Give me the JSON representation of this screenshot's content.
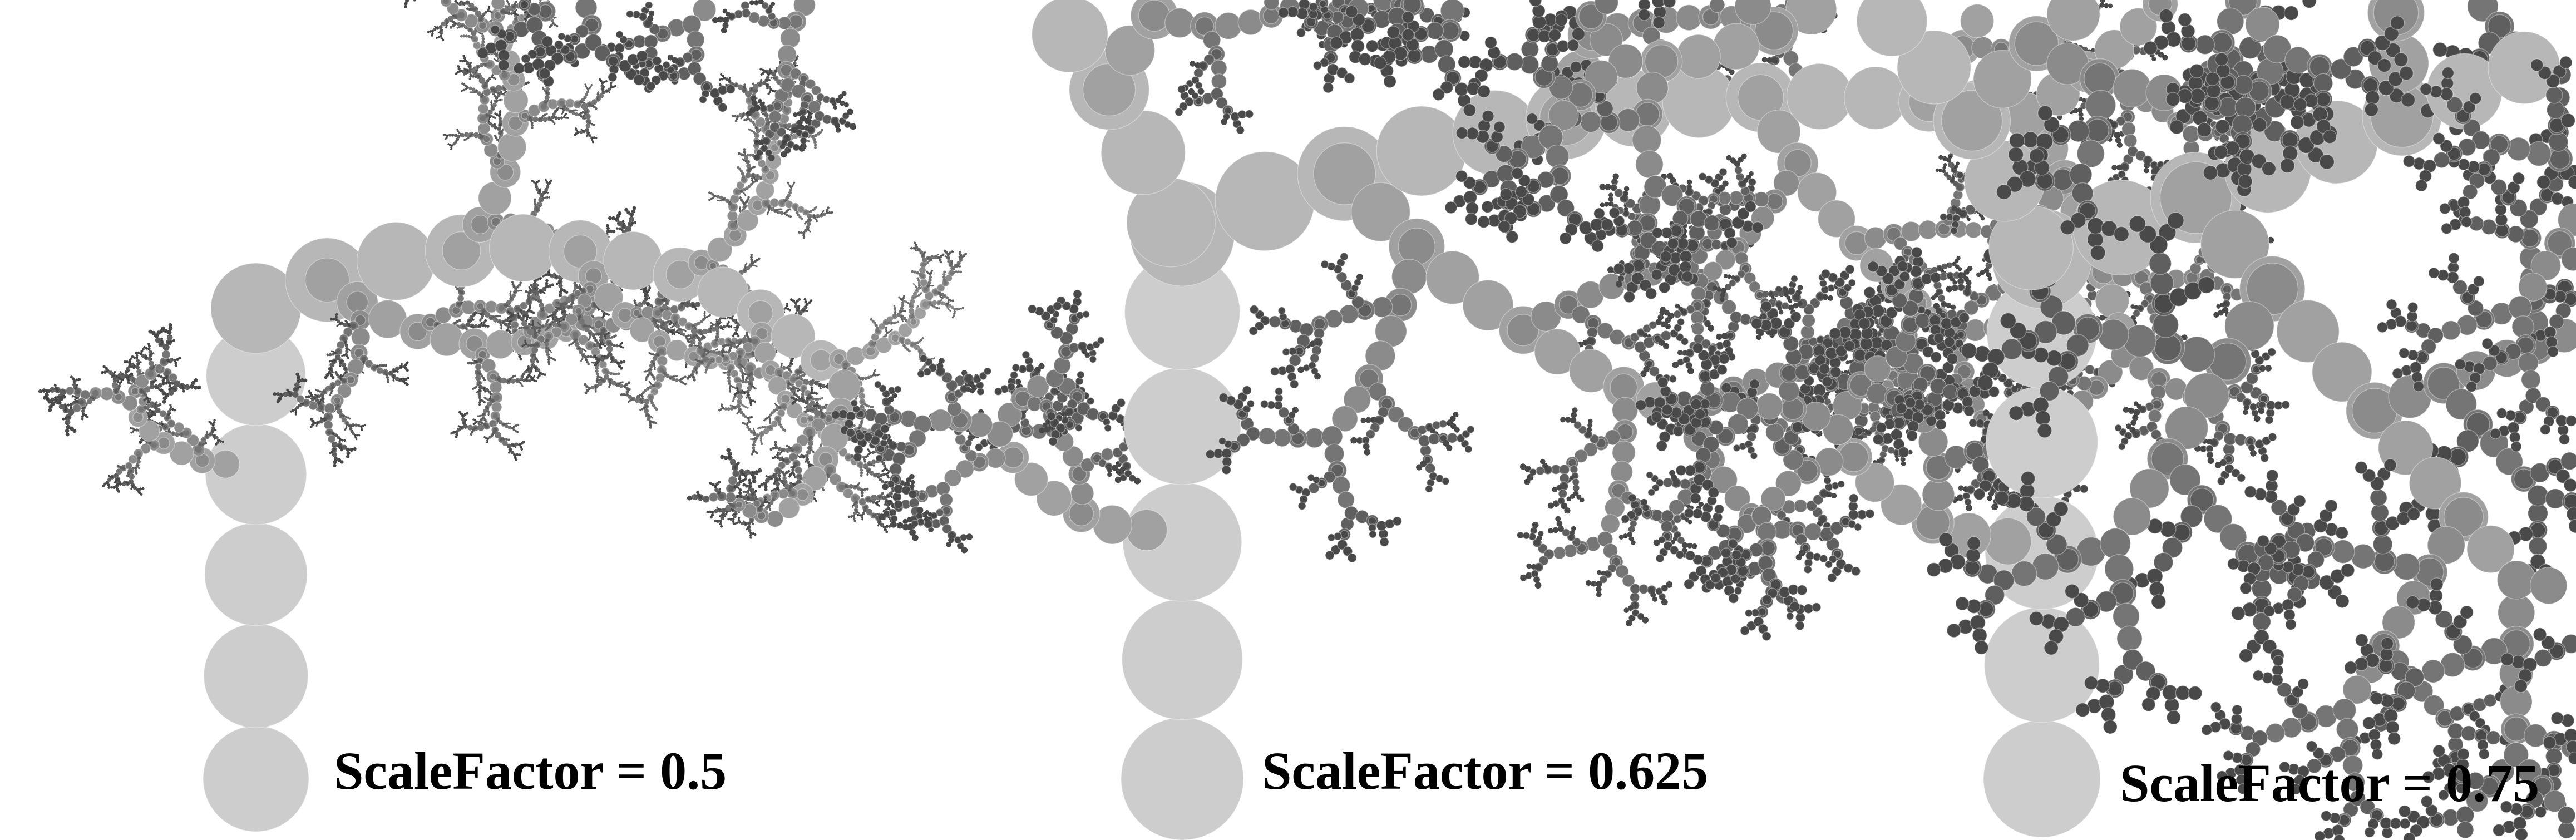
{
  "panels": [
    {
      "label": "ScaleFactor = 0.5",
      "scale_factor": 0.5
    },
    {
      "label": "ScaleFactor = 0.625",
      "scale_factor": 0.625
    },
    {
      "label": "ScaleFactor = 0.75",
      "scale_factor": 0.75
    }
  ],
  "colors": {
    "background": "#ffffff",
    "trunk": "#c9c9c9",
    "branch_mid": "#9a9a9a",
    "tips": "#3a3a3a",
    "label": "#000000"
  }
}
